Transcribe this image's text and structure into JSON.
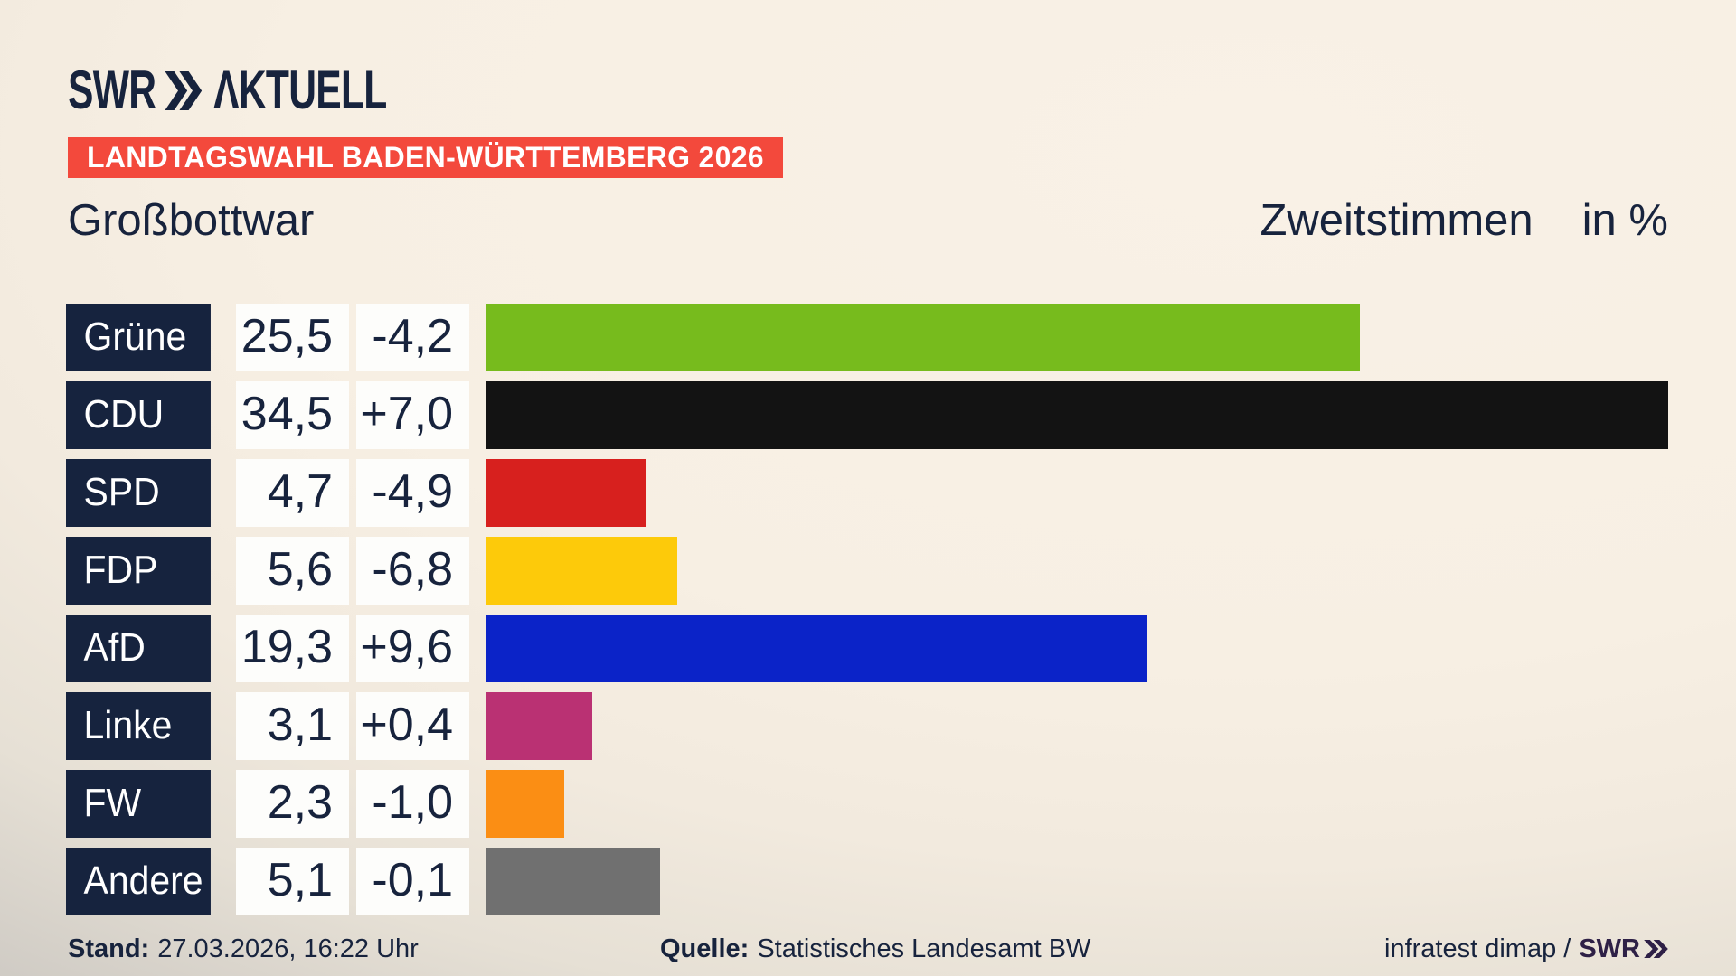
{
  "header": {
    "brand_swr": "SWR",
    "brand_aktuell": "ΛKTUELL",
    "banner": "LANDTAGSWAHL BADEN-WÜRTTEMBERG 2026",
    "title": "Großbottwar",
    "subtitle": "Zweitstimmen",
    "unit": "in %"
  },
  "chart_data": {
    "type": "bar",
    "orientation": "horizontal",
    "title": "Großbottwar",
    "subtitle": "Zweitstimmen in %",
    "categories": [
      "Grüne",
      "CDU",
      "SPD",
      "FDP",
      "AfD",
      "Linke",
      "FW",
      "Andere"
    ],
    "values": [
      25.5,
      34.5,
      4.7,
      5.6,
      19.3,
      3.1,
      2.3,
      5.1
    ],
    "value_labels": [
      "25,5",
      "34,5",
      "4,7",
      "5,6",
      "19,3",
      "3,1",
      "2,3",
      "5,1"
    ],
    "changes": [
      -4.2,
      7.0,
      -4.9,
      -6.8,
      9.6,
      0.4,
      -1.0,
      -0.1
    ],
    "change_labels": [
      "-4,2",
      "+7,0",
      "-4,9",
      "-6,8",
      "+9,6",
      "+0,4",
      "-1,0",
      "-0,1"
    ],
    "bar_colors": [
      "#77bb1d",
      "#131313",
      "#d7201e",
      "#fdca0a",
      "#0b23c8",
      "#ba3173",
      "#fb8e14",
      "#707070"
    ],
    "xlim": [
      0,
      36.5
    ],
    "grid": false,
    "legend": "none"
  },
  "footer": {
    "stand_label": "Stand:",
    "stand_value": "27.03.2026, 16:22 Uhr",
    "quelle_label": "Quelle:",
    "quelle_value": "Statistisches Landesamt BW",
    "credit": "infratest dimap /",
    "credit_brand": "SWR"
  },
  "colors": {
    "background_center": "#f9f1e6",
    "background_edge": "#b2afab",
    "navy_text": "#17233d",
    "label_box": "#16233e",
    "banner_red": "#f3493c",
    "value_box": "#fdfdfb"
  }
}
